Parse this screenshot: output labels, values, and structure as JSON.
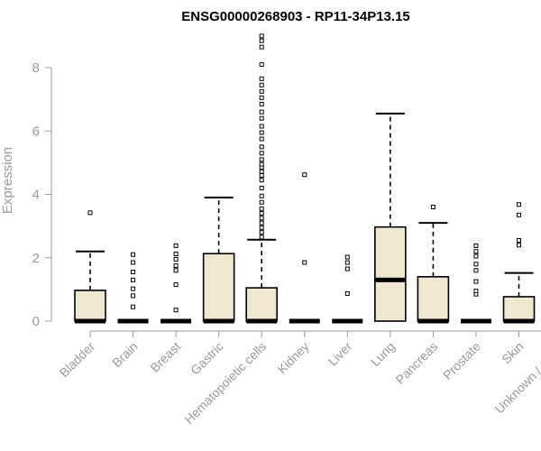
{
  "chart_data": {
    "type": "box",
    "title": "ENSG00000268903 - RP11-34P13.15",
    "xlabel": "",
    "ylabel": "Expression",
    "ylim": [
      0,
      9.2
    ],
    "yticks": [
      0,
      2,
      4,
      6,
      8
    ],
    "grid": false,
    "colors": {
      "box_fill": "#efe7cf",
      "stroke": "#000000",
      "axis": "#999999",
      "title": "#000000"
    },
    "categories": [
      "Bladder",
      "Brain",
      "Breast",
      "Gastric",
      "Hematopoietic cells",
      "Kidney",
      "Liver",
      "Lung",
      "Pancreas",
      "Prostate",
      "Skin",
      "Unknown / Other"
    ],
    "boxes": [
      {
        "category": "Bladder",
        "q1": 0,
        "median": 0,
        "q3": 0.97,
        "whisker_low": 0,
        "whisker_high": 2.2,
        "outliers": [
          3.42
        ]
      },
      {
        "category": "Brain",
        "q1": 0,
        "median": 0,
        "q3": 0,
        "whisker_low": 0,
        "whisker_high": 0,
        "outliers": [
          0.45,
          0.8,
          1.02,
          1.3,
          1.55,
          1.85,
          2.1
        ]
      },
      {
        "category": "Breast",
        "q1": 0,
        "median": 0,
        "q3": 0,
        "whisker_low": 0,
        "whisker_high": 0,
        "outliers": [
          0.35,
          1.15,
          1.6,
          1.75,
          1.95,
          2.12,
          2.38
        ]
      },
      {
        "category": "Gastric",
        "q1": 0,
        "median": 0,
        "q3": 2.13,
        "whisker_low": 0,
        "whisker_high": 3.9,
        "outliers": []
      },
      {
        "category": "Hematopoietic cells",
        "q1": 0,
        "median": 0,
        "q3": 1.05,
        "whisker_low": 0,
        "whisker_high": 2.57,
        "outliers": [
          2.65,
          2.8,
          2.95,
          3.1,
          3.25,
          3.4,
          3.55,
          3.75,
          3.95,
          4.2,
          4.45,
          4.6,
          4.72,
          4.85,
          4.95,
          5.1,
          5.3,
          5.5,
          5.75,
          5.95,
          6.15,
          6.4,
          6.6,
          6.85,
          7.05,
          7.25,
          7.45,
          7.65,
          8.1,
          8.65,
          8.85,
          9.0
        ]
      },
      {
        "category": "Kidney",
        "q1": 0,
        "median": 0,
        "q3": 0,
        "whisker_low": 0,
        "whisker_high": 0,
        "outliers": [
          1.85,
          4.62
        ]
      },
      {
        "category": "Liver",
        "q1": 0,
        "median": 0,
        "q3": 0,
        "whisker_low": 0,
        "whisker_high": 0,
        "outliers": [
          0.87,
          1.65,
          1.85,
          2.02
        ]
      },
      {
        "category": "Lung",
        "q1": 0,
        "median": 1.3,
        "q3": 2.97,
        "whisker_low": 0,
        "whisker_high": 6.55,
        "outliers": []
      },
      {
        "category": "Pancreas",
        "q1": 0,
        "median": 0,
        "q3": 1.4,
        "whisker_low": 0,
        "whisker_high": 3.1,
        "outliers": [
          3.6
        ]
      },
      {
        "category": "Prostate",
        "q1": 0,
        "median": 0,
        "q3": 0,
        "whisker_low": 0,
        "whisker_high": 0,
        "outliers": [
          0.85,
          0.95,
          1.25,
          1.6,
          1.8,
          2.05,
          2.2,
          2.38
        ]
      },
      {
        "category": "Skin",
        "q1": 0,
        "median": 0,
        "q3": 0.77,
        "whisker_low": 0,
        "whisker_high": 1.52,
        "outliers": [
          2.4,
          2.55,
          3.35,
          3.68
        ]
      },
      {
        "category": "Unknown / Other",
        "q1": 0,
        "median": 0,
        "q3": 1.58,
        "whisker_low": 0,
        "whisker_high": 3.7,
        "outliers": [
          3.95
        ]
      }
    ]
  }
}
